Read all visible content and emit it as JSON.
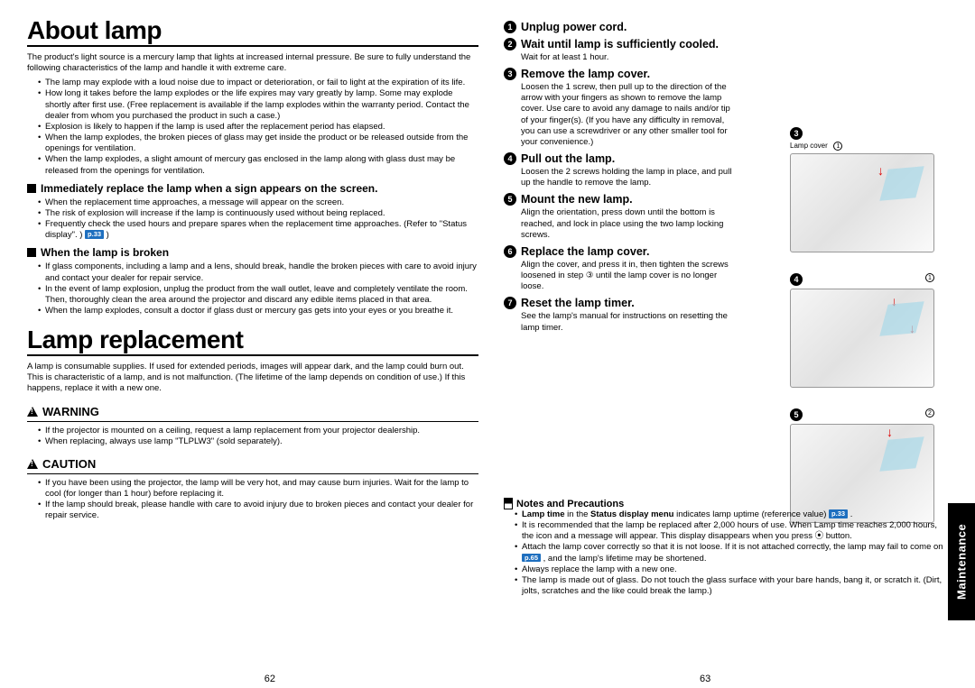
{
  "left": {
    "h1a": "About lamp",
    "intro": "The product's light source is a mercury lamp that lights at increased internal pressure. Be sure to fully understand the following characteristics of the lamp and handle it with extreme care.",
    "bullets1": [
      "The lamp may explode with a loud noise due to impact or deterioration, or fail to light at the expiration of its life.",
      "How long it takes before the lamp explodes or the life expires may vary greatly by lamp. Some may explode shortly after first use. (Free replacement is available if the lamp explodes within the warranty period. Contact the dealer from whom you purchased the product in such a case.)",
      "Explosion is likely to happen if the lamp is used after the replacement period has elapsed.",
      "When the lamp explodes, the broken pieces of glass may get inside the product or be released outside from the openings for ventilation.",
      "When the lamp explodes, a slight amount of mercury gas enclosed in the lamp along with glass dust may be released from the openings for ventilation."
    ],
    "sqA": "Immediately replace the lamp when a sign appears on the screen.",
    "bullets2": [
      "When the replacement time approaches, a message will appear on the screen.",
      "The risk of explosion will increase if the lamp is continuously used without being replaced.",
      "Frequently check the used hours and prepare spares when the replacement time approaches. (Refer to \"Status display\".       )"
    ],
    "ref2": "p.33",
    "sqB": "When the lamp is broken",
    "bullets3": [
      "If glass components, including a lamp and a lens, should break, handle the broken pieces with care to avoid injury and contact your dealer for repair service.",
      "In the event of lamp explosion, unplug the product from the wall outlet, leave and completely ventilate the room. Then, thoroughly clean the area around the projector and discard any edible items placed in that area.",
      "When the lamp explodes, consult a doctor if glass dust or mercury gas gets into your eyes or you breathe it."
    ],
    "h1b": "Lamp replacement",
    "intro2": "A lamp is consumable supplies. If used for extended periods, images will appear dark, and the lamp could burn out. This is characteristic of a lamp, and is not malfunction. (The lifetime of the lamp depends on condition of use.) If this happens, replace it with a new one.",
    "warn": "WARNING",
    "bullets4": [
      "If the projector is mounted on a ceiling, request a lamp replacement from your projector dealership.",
      "When replacing, always use lamp \"TLPLW3\" (sold separately)."
    ],
    "caution": "CAUTION",
    "bullets5": [
      "If you have been using the projector, the lamp will be very hot, and may cause burn injuries. Wait for the lamp to cool (for longer than 1 hour) before replacing it.",
      "If the lamp should break, please handle with care to avoid injury due to broken pieces and contact your dealer for repair service."
    ]
  },
  "right": {
    "steps": [
      {
        "n": "1",
        "title": "Unplug power cord.",
        "body": ""
      },
      {
        "n": "2",
        "title": "Wait until lamp is sufficiently cooled.",
        "body": "Wait for at least 1 hour."
      },
      {
        "n": "3",
        "title": "Remove the lamp cover.",
        "body": "Loosen the 1 screw, then pull up to the direction of the arrow with your fingers as shown to remove the lamp cover. Use care to avoid any damage to nails and/or tip of your finger(s). (If you have any difficulty in removal, you can use a screwdriver or any other smaller tool for your convenience.)"
      },
      {
        "n": "4",
        "title": "Pull out the lamp.",
        "body": "Loosen the 2 screws holding the lamp in place, and pull up the handle to remove the lamp."
      },
      {
        "n": "5",
        "title": "Mount the new lamp.",
        "body": "Align the orientation, press down until the bottom is reached, and lock in place using the two lamp locking screws."
      },
      {
        "n": "6",
        "title": "Replace the lamp cover.",
        "body": "Align the cover, and press it in, then tighten the screws loosened in step ③ until the lamp cover is no longer loose."
      },
      {
        "n": "7",
        "title": "Reset the lamp timer.",
        "body": "See the lamp's manual for instructions on resetting the lamp timer."
      }
    ],
    "notesHead": "Notes and Precautions",
    "notes": [
      "Lamp time in the Status display menu indicates lamp uptime (reference value)       .",
      "It is recommended that the lamp be replaced after 2,000 hours of use. When Lamp time reaches 2,000 hours, the     icon and a message will appear. This display disappears when you press ⦿ button.",
      "Attach the lamp cover correctly so that it is not loose. If it is not attached correctly, the lamp may fail to come on       , and the lamp's lifetime may be shortened.",
      "Always replace the lamp with a new one.",
      "The lamp is made out of glass. Do not touch the glass surface with your bare hands, bang it, or scratch it. (Dirt, jolts, scratches and the like could break the lamp.)"
    ],
    "noteRef1": "p.33",
    "noteRef2": "p.65",
    "illLabels": {
      "lampCover": "Lamp cover"
    }
  },
  "pageL": "62",
  "pageR": "63",
  "sideTab": "Maintenance",
  "colors": {
    "pgRef": "#1e6fbf",
    "red": "#d00000"
  }
}
